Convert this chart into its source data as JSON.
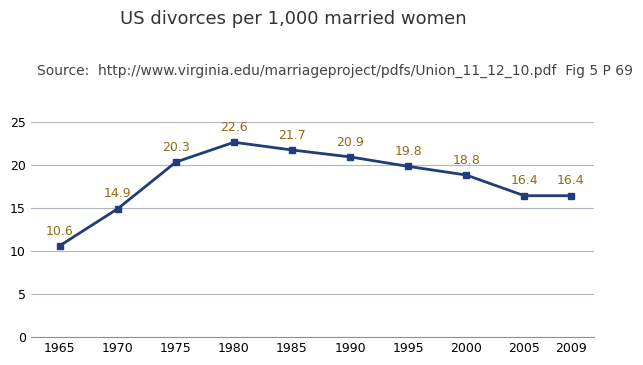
{
  "title": "US divorces per 1,000 married women",
  "source": "Source:  http://www.virginia.edu/marriageproject/pdfs/Union_11_12_10.pdf  Fig 5 P 69",
  "years": [
    1965,
    1970,
    1975,
    1980,
    1985,
    1990,
    1995,
    2000,
    2005,
    2009
  ],
  "values": [
    10.6,
    14.9,
    20.3,
    22.6,
    21.7,
    20.9,
    19.8,
    18.8,
    16.4,
    16.4
  ],
  "line_color": "#1F3D7A",
  "marker_color": "#1F3D7A",
  "label_color": "#8B6B14",
  "background_color": "#ffffff",
  "grid_color": "#b0b8c8",
  "ylim": [
    0,
    25
  ],
  "yticks": [
    0,
    5,
    10,
    15,
    20,
    25
  ],
  "title_fontsize": 13,
  "source_fontsize": 10,
  "label_fontsize": 9,
  "tick_fontsize": 9,
  "title_color": "#333333",
  "source_color": "#444444"
}
